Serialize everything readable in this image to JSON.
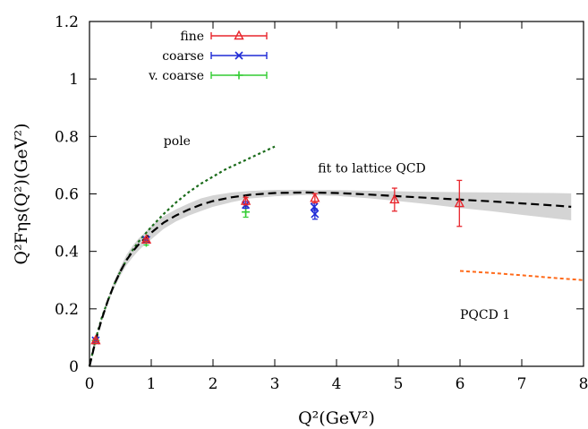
{
  "chart_data": {
    "type": "scatter",
    "xlabel": "Q²(GeV²)",
    "ylabel": "Q²Fηs(Q²)(GeV²)",
    "xlim": [
      0,
      8
    ],
    "ylim": [
      0,
      1.2
    ],
    "xticks": [
      0,
      1,
      2,
      3,
      4,
      5,
      6,
      7,
      8
    ],
    "yticks": [
      0,
      0.2,
      0.4,
      0.6,
      0.8,
      1,
      1.2
    ],
    "ytick_labels": [
      "0",
      "0.2",
      "0.4",
      "0.6",
      "0.8",
      "1",
      "1.2"
    ],
    "grid": false,
    "legend_position": "top-left",
    "annotations": [
      {
        "text": "pole",
        "x": 1.2,
        "y": 0.77
      },
      {
        "text": "fit to lattice QCD",
        "x": 3.7,
        "y": 0.675
      },
      {
        "text": "PQCD 1",
        "x": 6.0,
        "y": 0.165
      }
    ],
    "points": [
      {
        "name": "fine",
        "color": "#e8262d",
        "marker": "triangle",
        "points": [
          {
            "x": 0.1,
            "y": 0.09,
            "err": 0.005
          },
          {
            "x": 0.92,
            "y": 0.44,
            "err": 0.005
          },
          {
            "x": 2.53,
            "y": 0.575,
            "err": 0.013
          },
          {
            "x": 3.65,
            "y": 0.585,
            "err": 0.016
          },
          {
            "x": 4.94,
            "y": 0.58,
            "err": 0.04
          },
          {
            "x": 5.99,
            "y": 0.567,
            "err": 0.08
          }
        ]
      },
      {
        "name": "coarse",
        "color": "#1f2ad6",
        "marker": "cross",
        "points": [
          {
            "x": 0.1,
            "y": 0.09,
            "err": 0.005
          },
          {
            "x": 0.92,
            "y": 0.44,
            "err": 0.005
          },
          {
            "x": 2.53,
            "y": 0.562,
            "err": 0.012
          },
          {
            "x": 3.64,
            "y": 0.555,
            "err": 0.013
          },
          {
            "x": 3.65,
            "y": 0.53,
            "err": 0.018
          }
        ]
      },
      {
        "name": "v. coarse",
        "color": "#33cc33",
        "marker": "plus",
        "points": [
          {
            "x": 0.1,
            "y": 0.09,
            "err": 0.005
          },
          {
            "x": 0.92,
            "y": 0.43,
            "err": 0.008
          },
          {
            "x": 2.53,
            "y": 0.537,
            "err": 0.018
          }
        ]
      }
    ],
    "curves": {
      "pole": {
        "color": "#1a6b1a",
        "x": [
          0,
          0.1,
          0.2,
          0.3,
          0.4,
          0.5,
          0.6,
          0.7,
          0.8,
          0.9,
          1.0,
          1.2,
          1.4,
          1.6,
          1.8,
          2.0,
          2.2,
          2.4,
          2.6,
          2.8,
          3.0
        ],
        "y": [
          0,
          0.095,
          0.17,
          0.23,
          0.285,
          0.33,
          0.37,
          0.405,
          0.435,
          0.46,
          0.485,
          0.53,
          0.57,
          0.605,
          0.635,
          0.66,
          0.685,
          0.705,
          0.725,
          0.745,
          0.765
        ]
      },
      "fit_to_lattice_qcd": {
        "color": "#000000",
        "band_color": "#d4d4d4",
        "x": [
          0,
          0.1,
          0.2,
          0.3,
          0.4,
          0.5,
          0.6,
          0.7,
          0.8,
          0.9,
          1.0,
          1.2,
          1.4,
          1.6,
          1.8,
          2.0,
          2.3,
          2.6,
          3.0,
          3.5,
          4.0,
          4.5,
          5.0,
          5.5,
          6.0,
          6.5,
          7.0,
          7.5,
          7.8
        ],
        "y": [
          0,
          0.09,
          0.165,
          0.23,
          0.285,
          0.33,
          0.37,
          0.4,
          0.425,
          0.445,
          0.465,
          0.5,
          0.525,
          0.545,
          0.562,
          0.575,
          0.588,
          0.597,
          0.603,
          0.605,
          0.603,
          0.598,
          0.592,
          0.586,
          0.58,
          0.574,
          0.567,
          0.56,
          0.555
        ],
        "y_low": [
          0,
          0.088,
          0.16,
          0.22,
          0.272,
          0.315,
          0.352,
          0.38,
          0.404,
          0.424,
          0.442,
          0.478,
          0.504,
          0.524,
          0.54,
          0.555,
          0.571,
          0.584,
          0.592,
          0.596,
          0.593,
          0.585,
          0.575,
          0.564,
          0.551,
          0.54,
          0.527,
          0.515,
          0.508
        ],
        "y_high": [
          0,
          0.092,
          0.17,
          0.238,
          0.298,
          0.345,
          0.388,
          0.42,
          0.446,
          0.466,
          0.488,
          0.522,
          0.546,
          0.566,
          0.584,
          0.595,
          0.605,
          0.61,
          0.614,
          0.614,
          0.613,
          0.611,
          0.609,
          0.607,
          0.606,
          0.605,
          0.604,
          0.603,
          0.602
        ]
      },
      "pqcd_1": {
        "color": "#ff6a1a",
        "x": [
          6.0,
          6.5,
          7.0,
          7.5,
          8.0
        ],
        "y": [
          0.332,
          0.325,
          0.317,
          0.308,
          0.3
        ]
      }
    }
  }
}
